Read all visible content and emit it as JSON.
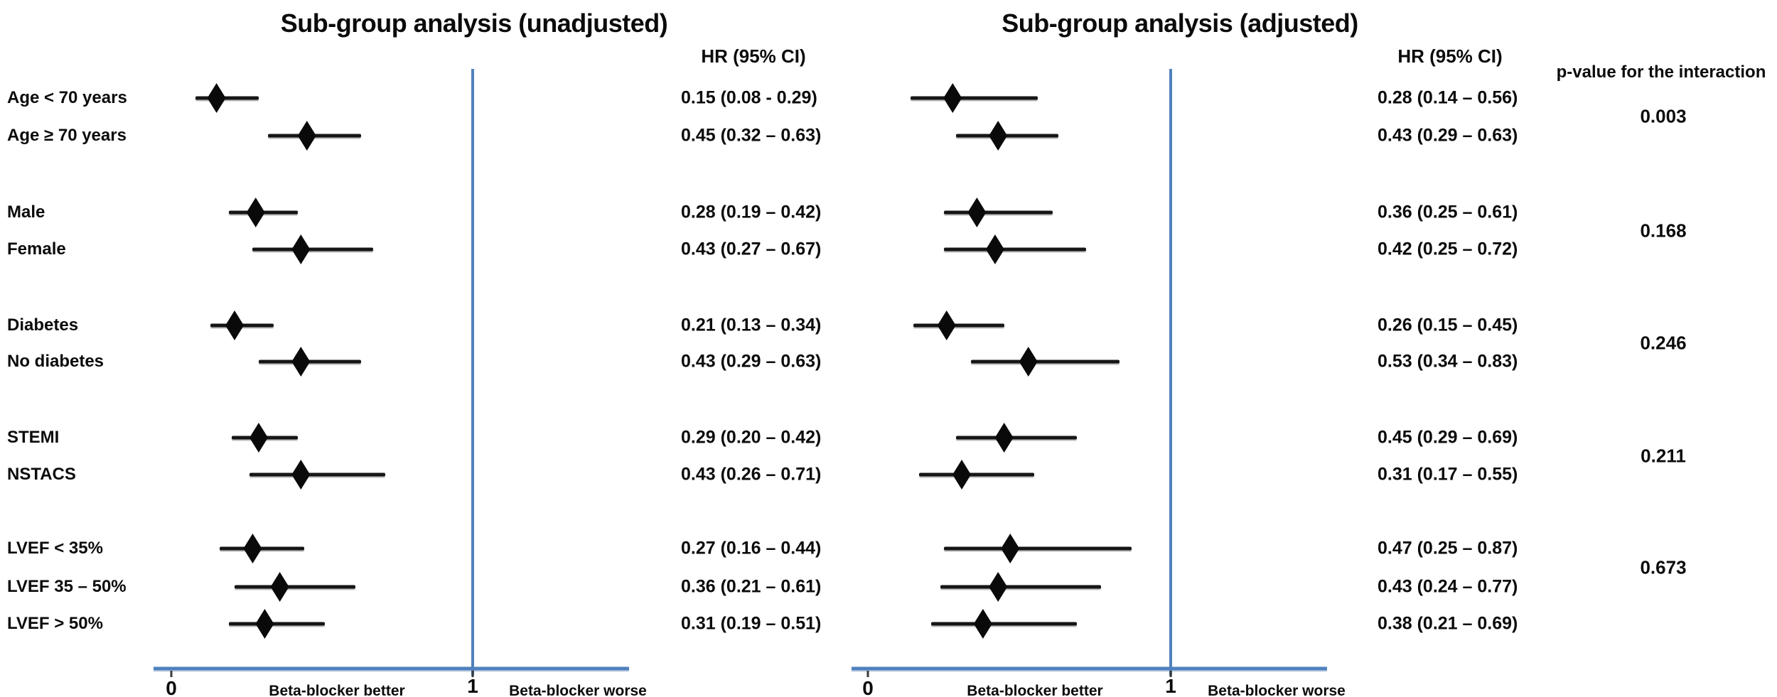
{
  "figure": {
    "left_panel": {
      "title": "Sub-group analysis (unadjusted)",
      "hr_header": "HR (95% CI)"
    },
    "right_panel": {
      "title": "Sub-group analysis (adjusted)",
      "hr_header": "HR (95% CI)"
    },
    "p_column_header": "p-value for the interaction",
    "axis": {
      "zero_label": "0",
      "one_label": "1",
      "better_label": "Beta-blocker better",
      "worse_label": "Beta-blocker worse"
    },
    "colors": {
      "axis_line": "#4f81bd",
      "marker": "#0a0a0a",
      "text": "#0b0b0b"
    }
  },
  "chart_data": {
    "type": "scatter",
    "subtype": "forest-plot",
    "panels": [
      {
        "name": "unadjusted",
        "title": "Sub-group analysis (unadjusted)",
        "value_header": "HR (95% CI)"
      },
      {
        "name": "adjusted",
        "title": "Sub-group analysis (adjusted)",
        "value_header": "HR (95% CI)"
      }
    ],
    "x_axis": {
      "scale": "linear",
      "min": 0,
      "plotted_max": 1.52,
      "ticks": [
        0,
        1
      ],
      "reference_line": 1,
      "better_direction_label": "Beta-blocker better",
      "worse_direction_label": "Beta-blocker worse"
    },
    "rows": [
      {
        "label": "Age < 70 years",
        "group": "age",
        "unadjusted": {
          "hr": 0.15,
          "ci_low": 0.08,
          "ci_high": 0.29,
          "text": "0.15 (0.08 - 0.29)"
        },
        "adjusted": {
          "hr": 0.28,
          "ci_low": 0.14,
          "ci_high": 0.56,
          "text": "0.28 (0.14 – 0.56)"
        }
      },
      {
        "label": "Age ≥ 70 years",
        "group": "age",
        "unadjusted": {
          "hr": 0.45,
          "ci_low": 0.32,
          "ci_high": 0.63,
          "text": "0.45 (0.32 – 0.63)"
        },
        "adjusted": {
          "hr": 0.43,
          "ci_low": 0.29,
          "ci_high": 0.63,
          "text": "0.43 (0.29 – 0.63)"
        }
      },
      {
        "label": "Male",
        "group": "sex",
        "unadjusted": {
          "hr": 0.28,
          "ci_low": 0.19,
          "ci_high": 0.42,
          "text": "0.28 (0.19 – 0.42)"
        },
        "adjusted": {
          "hr": 0.36,
          "ci_low": 0.25,
          "ci_high": 0.61,
          "text": "0.36 (0.25 – 0.61)"
        }
      },
      {
        "label": "Female",
        "group": "sex",
        "unadjusted": {
          "hr": 0.43,
          "ci_low": 0.27,
          "ci_high": 0.67,
          "text": "0.43 (0.27 – 0.67)"
        },
        "adjusted": {
          "hr": 0.42,
          "ci_low": 0.25,
          "ci_high": 0.72,
          "text": "0.42 (0.25 – 0.72)"
        }
      },
      {
        "label": "Diabetes",
        "group": "diabetes",
        "unadjusted": {
          "hr": 0.21,
          "ci_low": 0.13,
          "ci_high": 0.34,
          "text": "0.21 (0.13 – 0.34)"
        },
        "adjusted": {
          "hr": 0.26,
          "ci_low": 0.15,
          "ci_high": 0.45,
          "text": "0.26 (0.15 – 0.45)"
        }
      },
      {
        "label": "No diabetes",
        "group": "diabetes",
        "unadjusted": {
          "hr": 0.43,
          "ci_low": 0.29,
          "ci_high": 0.63,
          "text": "0.43 (0.29 – 0.63)"
        },
        "adjusted": {
          "hr": 0.53,
          "ci_low": 0.34,
          "ci_high": 0.83,
          "text": "0.53 (0.34 – 0.83)"
        }
      },
      {
        "label": "STEMI",
        "group": "presentation",
        "unadjusted": {
          "hr": 0.29,
          "ci_low": 0.2,
          "ci_high": 0.42,
          "text": "0.29 (0.20 – 0.42)"
        },
        "adjusted": {
          "hr": 0.45,
          "ci_low": 0.29,
          "ci_high": 0.69,
          "text": "0.45 (0.29 – 0.69)"
        }
      },
      {
        "label": "NSTACS",
        "group": "presentation",
        "unadjusted": {
          "hr": 0.43,
          "ci_low": 0.26,
          "ci_high": 0.71,
          "text": "0.43 (0.26 – 0.71)"
        },
        "adjusted": {
          "hr": 0.31,
          "ci_low": 0.17,
          "ci_high": 0.55,
          "text": "0.31 (0.17 – 0.55)"
        }
      },
      {
        "label": "LVEF < 35%",
        "group": "lvef",
        "unadjusted": {
          "hr": 0.27,
          "ci_low": 0.16,
          "ci_high": 0.44,
          "text": "0.27 (0.16 – 0.44)"
        },
        "adjusted": {
          "hr": 0.47,
          "ci_low": 0.25,
          "ci_high": 0.87,
          "text": "0.47 (0.25 – 0.87)"
        }
      },
      {
        "label": "LVEF 35 – 50%",
        "group": "lvef",
        "unadjusted": {
          "hr": 0.36,
          "ci_low": 0.21,
          "ci_high": 0.61,
          "text": "0.36 (0.21 – 0.61)"
        },
        "adjusted": {
          "hr": 0.43,
          "ci_low": 0.24,
          "ci_high": 0.77,
          "text": "0.43 (0.24 – 0.77)"
        }
      },
      {
        "label": "LVEF > 50%",
        "group": "lvef",
        "unadjusted": {
          "hr": 0.31,
          "ci_low": 0.19,
          "ci_high": 0.51,
          "text": "0.31 (0.19 – 0.51)"
        },
        "adjusted": {
          "hr": 0.38,
          "ci_low": 0.21,
          "ci_high": 0.69,
          "text": "0.38 (0.21 – 0.69)"
        }
      }
    ],
    "p_values_for_interaction": [
      {
        "group": "age",
        "value": "0.003"
      },
      {
        "group": "sex",
        "value": "0.168"
      },
      {
        "group": "diabetes",
        "value": "0.246"
      },
      {
        "group": "presentation",
        "value": "0.211"
      },
      {
        "group": "lvef",
        "value": "0.673"
      }
    ]
  }
}
